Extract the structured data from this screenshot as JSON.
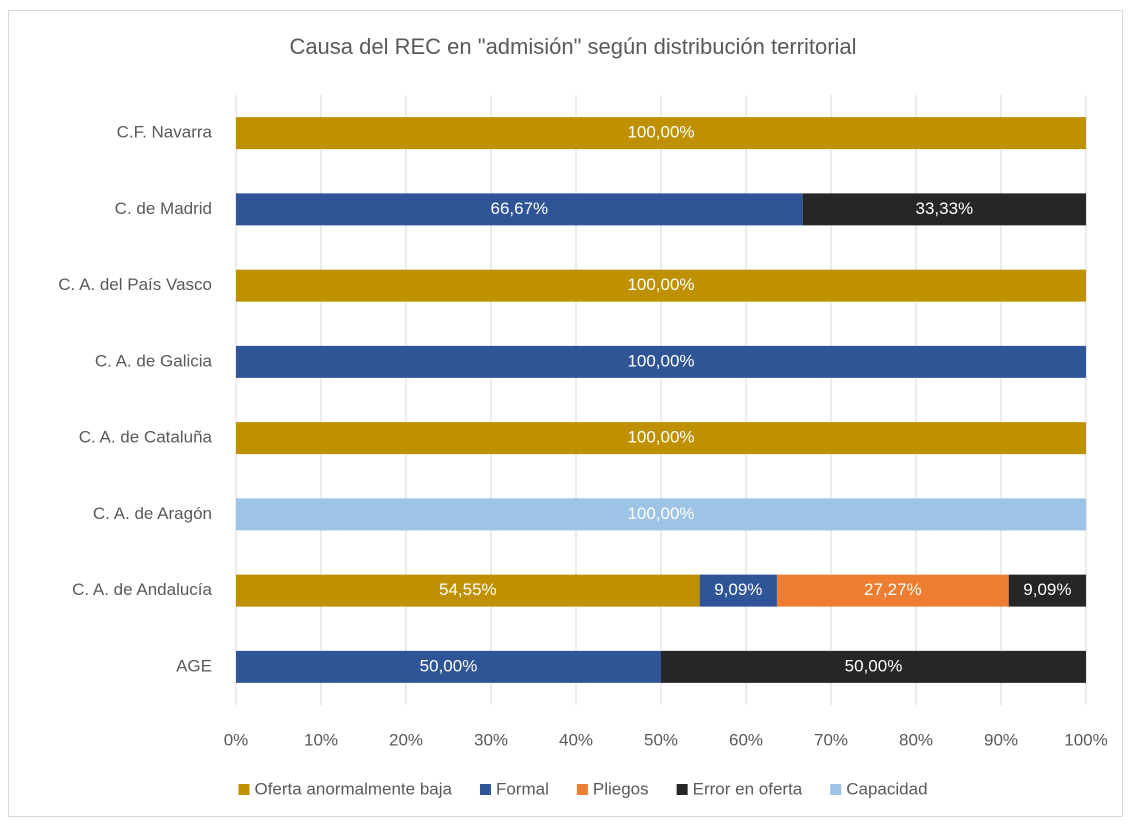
{
  "chart_data": {
    "type": "bar",
    "orientation": "horizontal",
    "stacked": true,
    "title": "Causa del REC en \"admisión\" según distribución territorial",
    "categories": [
      "C.F. Navarra",
      "C. de Madrid",
      "C. A. del País Vasco",
      "C. A. de Galicia",
      "C. A. de Cataluña",
      "C. A. de Aragón",
      "C. A. de Andalucía",
      "AGE"
    ],
    "series": [
      {
        "name": "Oferta anormalmente baja",
        "color": "#bf9000",
        "values": [
          100,
          null,
          100,
          null,
          100,
          null,
          54.55,
          null
        ],
        "value_labels": [
          "100,00%",
          null,
          "100,00%",
          null,
          "100,00%",
          null,
          "54,55%",
          null
        ]
      },
      {
        "name": "Formal",
        "color": "#2f5597",
        "values": [
          null,
          66.67,
          null,
          100,
          null,
          null,
          9.09,
          50
        ],
        "value_labels": [
          null,
          "66,67%",
          null,
          "100,00%",
          null,
          null,
          "9,09%",
          "50,00%"
        ]
      },
      {
        "name": "Pliegos",
        "color": "#ed7d31",
        "values": [
          null,
          null,
          null,
          null,
          null,
          null,
          27.27,
          null
        ],
        "value_labels": [
          null,
          null,
          null,
          null,
          null,
          null,
          "27,27%",
          null
        ]
      },
      {
        "name": "Error en oferta",
        "color": "#262626",
        "values": [
          null,
          33.33,
          null,
          null,
          null,
          null,
          9.09,
          50
        ],
        "value_labels": [
          null,
          "33,33%",
          null,
          null,
          null,
          null,
          "9,09%",
          "50,00%"
        ]
      },
      {
        "name": "Capacidad",
        "color": "#9dc3e6",
        "values": [
          null,
          null,
          null,
          null,
          null,
          100,
          null,
          null
        ],
        "value_labels": [
          null,
          null,
          null,
          null,
          null,
          "100,00%",
          null,
          null
        ]
      }
    ],
    "xlim": [
      0,
      100
    ],
    "xticks": [
      {
        "value": 0,
        "label": "0%"
      },
      {
        "value": 10,
        "label": "10%"
      },
      {
        "value": 20,
        "label": "20%"
      },
      {
        "value": 30,
        "label": "30%"
      },
      {
        "value": 40,
        "label": "40%"
      },
      {
        "value": 50,
        "label": "50%"
      },
      {
        "value": 60,
        "label": "60%"
      },
      {
        "value": 70,
        "label": "70%"
      },
      {
        "value": 80,
        "label": "80%"
      },
      {
        "value": 90,
        "label": "90%"
      },
      {
        "value": 100,
        "label": "100%"
      }
    ],
    "grid": true,
    "legend": "bottom"
  }
}
